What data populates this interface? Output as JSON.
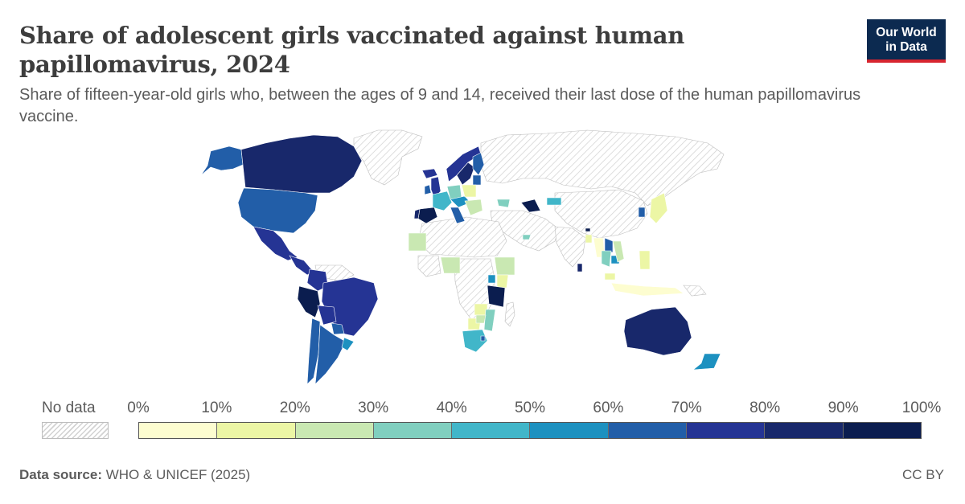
{
  "header": {
    "title": "Share of adolescent girls vaccinated against human papillomavirus, 2024",
    "subtitle": "Share of fifteen-year-old girls who, between the ages of 9 and 14, received their last dose of the human papillomavirus vaccine."
  },
  "logo": {
    "line1": "Our World",
    "line2": "in Data",
    "bg_color": "#0c2a50",
    "accent_color": "#d7252f"
  },
  "legend": {
    "no_data_label": "No data",
    "ticks": [
      "0%",
      "10%",
      "20%",
      "30%",
      "40%",
      "50%",
      "60%",
      "70%",
      "80%",
      "90%",
      "100%"
    ],
    "bin_colors": [
      "#fdfdd0",
      "#ecf6a5",
      "#c9e8b2",
      "#80cfbf",
      "#41b6c9",
      "#1d91c0",
      "#225ea8",
      "#253494",
      "#18286b",
      "#0b1d4f"
    ],
    "no_data_color": "#f2f2f2"
  },
  "footer": {
    "source_label": "Data source:",
    "source_text": "WHO & UNICEF (2025)",
    "license": "CC BY"
  },
  "regions": [
    {
      "name": "canada-region",
      "bin": 8
    },
    {
      "name": "alaska-region",
      "bin": 6
    },
    {
      "name": "usa-region",
      "bin": 6
    },
    {
      "name": "mexico-region",
      "bin": 7
    },
    {
      "name": "central-america-region",
      "bin": 7
    },
    {
      "name": "colombia-region",
      "bin": 7
    },
    {
      "name": "peru-region",
      "bin": 9
    },
    {
      "name": "brazil-region",
      "bin": 7
    },
    {
      "name": "bolivia-region",
      "bin": 7
    },
    {
      "name": "paraguay-region",
      "bin": 6
    },
    {
      "name": "chile-region",
      "bin": 6
    },
    {
      "name": "argentina-region",
      "bin": 6
    },
    {
      "name": "uruguay-region",
      "bin": 5
    },
    {
      "name": "iceland-region",
      "bin": 7
    },
    {
      "name": "uk-region",
      "bin": 7
    },
    {
      "name": "ireland-region",
      "bin": 6
    },
    {
      "name": "norway-region",
      "bin": 7
    },
    {
      "name": "sweden-region",
      "bin": 8
    },
    {
      "name": "finland-region",
      "bin": 6
    },
    {
      "name": "baltics-region",
      "bin": 6
    },
    {
      "name": "france-region",
      "bin": 4
    },
    {
      "name": "spain-region",
      "bin": 9
    },
    {
      "name": "portugal-region",
      "bin": 8
    },
    {
      "name": "germany-region",
      "bin": 3
    },
    {
      "name": "central-europe-region",
      "bin": 5
    },
    {
      "name": "poland-region",
      "bin": 1
    },
    {
      "name": "italy-region",
      "bin": 6
    },
    {
      "name": "balkans-region",
      "bin": 2
    },
    {
      "name": "turkey-region",
      "bin": 3
    },
    {
      "name": "uzbekistan-region",
      "bin": 9
    },
    {
      "name": "kazakhstan-region",
      "bin": 4
    },
    {
      "name": "uae-region",
      "bin": 3
    },
    {
      "name": "mauritania-region",
      "bin": 2
    },
    {
      "name": "nigeria-region",
      "bin": 2
    },
    {
      "name": "ethiopia-region",
      "bin": 2
    },
    {
      "name": "kenya-region",
      "bin": 1
    },
    {
      "name": "uganda-region",
      "bin": 5
    },
    {
      "name": "tanzania-region",
      "bin": 9
    },
    {
      "name": "zambia-region",
      "bin": 1
    },
    {
      "name": "mozambique-region",
      "bin": 3
    },
    {
      "name": "botswana-region",
      "bin": 1
    },
    {
      "name": "zimbabwe-region",
      "bin": 2
    },
    {
      "name": "south-africa-region",
      "bin": 4
    },
    {
      "name": "eswatini-region",
      "bin": 6
    },
    {
      "name": "bhutan-region",
      "bin": 9
    },
    {
      "name": "bangladesh-region",
      "bin": 1
    },
    {
      "name": "myanmar-region",
      "bin": 0
    },
    {
      "name": "thailand-region",
      "bin": 3
    },
    {
      "name": "laos-region",
      "bin": 6
    },
    {
      "name": "cambodia-region",
      "bin": 5
    },
    {
      "name": "vietnam-region",
      "bin": 2
    },
    {
      "name": "malaysia-region",
      "bin": 1
    },
    {
      "name": "indonesia-region",
      "bin": 0
    },
    {
      "name": "philippines-region",
      "bin": 1
    },
    {
      "name": "taiwan-region",
      "bin": 6
    },
    {
      "name": "japan-region",
      "bin": 1
    },
    {
      "name": "australia-region",
      "bin": 8
    },
    {
      "name": "new-zealand-region",
      "bin": 5
    },
    {
      "name": "sri-lanka-region",
      "bin": 8
    }
  ]
}
